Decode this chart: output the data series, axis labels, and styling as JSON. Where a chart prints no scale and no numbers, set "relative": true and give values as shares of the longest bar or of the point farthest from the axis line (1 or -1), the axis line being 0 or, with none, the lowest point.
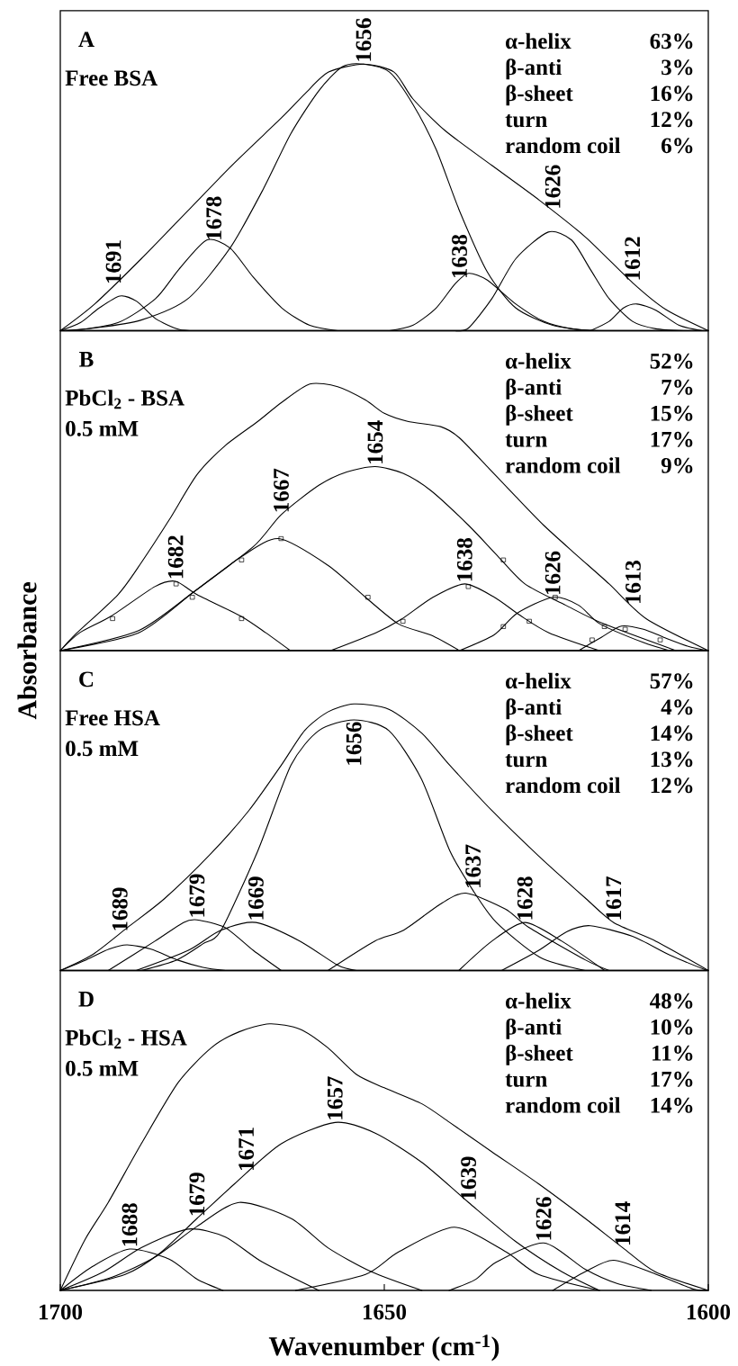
{
  "chart_data": [
    {
      "type": "line",
      "title": "A",
      "subtitle": "Free BSA",
      "relative": true,
      "xlim": [
        1700,
        1600
      ],
      "tick_labels": false,
      "series": [
        {
          "color": "#000000",
          "x": [
            1700,
            1694.7,
            1687.5,
            1680.3,
            1673.1,
            1665.8,
            1662.2,
            1658.6,
            1653.2,
            1648.5,
            1645.6,
            1640.6,
            1633.4,
            1626.1,
            1618.9,
            1611.7,
            1606.6,
            1600
          ],
          "values": [
            0,
            0.1,
            0.27,
            0.45,
            0.63,
            0.8,
            0.89,
            0.97,
            1,
            0.97,
            0.87,
            0.75,
            0.62,
            0.49,
            0.35,
            0.18,
            0.08,
            0
          ]
        },
        {
          "color": "#000000",
          "x": [
            1700,
            1696.9,
            1694,
            1690.8,
            1688.2,
            1685.3,
            1681.7,
            1678.8
          ],
          "values": [
            0,
            0.03,
            0.085,
            0.13,
            0.11,
            0.045,
            0.005,
            0
          ]
        },
        {
          "color": "#000000",
          "x": [
            1698.3,
            1691.1,
            1685.3,
            1681.7,
            1677.4,
            1673.8,
            1670.2,
            1665.8,
            1661.5,
            1657.2
          ],
          "values": [
            0,
            0.03,
            0.12,
            0.23,
            0.34,
            0.31,
            0.2,
            0.085,
            0.02,
            0
          ]
        },
        {
          "color": "#000000",
          "x": [
            1700,
            1694.7,
            1687.5,
            1680.3,
            1673.8,
            1668.7,
            1664.4,
            1660.1,
            1656.5,
            1653.2,
            1649.2,
            1645.6,
            1642,
            1638.4,
            1634.1,
            1629.7,
            1624,
            1618.2
          ],
          "values": [
            0,
            0.01,
            0.04,
            0.12,
            0.31,
            0.53,
            0.74,
            0.9,
            0.99,
            1,
            0.97,
            0.85,
            0.68,
            0.45,
            0.22,
            0.085,
            0.02,
            0
          ]
        },
        {
          "color": "#000000",
          "x": [
            1649.2,
            1645.6,
            1642,
            1639.1,
            1637,
            1634.1,
            1629.7,
            1625.4,
            1621.1,
            1616.8
          ],
          "values": [
            0,
            0.02,
            0.085,
            0.175,
            0.215,
            0.19,
            0.1,
            0.035,
            0.007,
            0
          ]
        },
        {
          "color": "#000000",
          "x": [
            1639.1,
            1637,
            1633.4,
            1629.7,
            1624.7,
            1621.1,
            1618.2,
            1615.3,
            1611.7,
            1608.1,
            1603.8
          ],
          "values": [
            0,
            0.01,
            0.12,
            0.27,
            0.37,
            0.34,
            0.23,
            0.12,
            0.035,
            0.007,
            0
          ]
        },
        {
          "color": "#000000",
          "x": [
            1618.2,
            1615.3,
            1613.1,
            1611,
            1608.1,
            1604.5,
            1600.9
          ],
          "values": [
            0,
            0.035,
            0.085,
            0.1,
            0.077,
            0.02,
            0
          ]
        }
      ],
      "annotations": [
        "α-helix",
        "63%",
        "β-anti",
        "3%",
        "β-sheet",
        "16%",
        "turn",
        "12%",
        "random coil",
        "6%",
        {
          "text": "1691",
          "x": 1691.8,
          "y": 0.168
        },
        {
          "text": "1678",
          "x": 1676.3,
          "y": 0.331
        },
        {
          "text": "1656",
          "x": 1653.2,
          "y": 1
        },
        {
          "text": "1638",
          "x": 1638.4,
          "y": 0.188
        },
        {
          "text": "1626",
          "x": 1624,
          "y": 0.449
        },
        {
          "text": "1612",
          "x": 1611.7,
          "y": 0.18
        }
      ]
    },
    {
      "type": "line",
      "title": "B",
      "subtitle": "PbCl$_{2}$ - BSA",
      "ylabel": "Absorbance",
      "relative": true,
      "xlim": [
        1700,
        1600
      ],
      "tick_labels": false,
      "series": [
        {
          "color": "#000000",
          "x": [
            1700,
            1697.7,
            1691.1,
            1687.5,
            1683.2,
            1678.9,
            1674.5,
            1669.5,
            1665.9,
            1661.5,
            1657.2,
            1652.9,
            1650,
            1646.4,
            1641.3,
            1638.5,
            1634.1,
            1629.8,
            1625.4,
            1620.4,
            1615.3,
            1609.6,
            1600
          ],
          "values": [
            0,
            0.06,
            0.21,
            0.33,
            0.49,
            0.66,
            0.77,
            0.86,
            0.93,
            1,
            0.99,
            0.94,
            0.89,
            0.86,
            0.84,
            0.8,
            0.69,
            0.58,
            0.47,
            0.36,
            0.25,
            0.12,
            0
          ]
        },
        {
          "color": "#000000",
          "x": [
            1700,
            1687.9,
            1679.4,
            1670.2,
            1665.9,
            1660.1,
            1655.8,
            1651.4,
            1647.1,
            1642.8,
            1637,
            1632.7,
            1628.3,
            1622,
            1616.1,
            1605
          ],
          "values": [
            0,
            0.067,
            0.22,
            0.39,
            0.51,
            0.62,
            0.67,
            0.69,
            0.665,
            0.6,
            0.47,
            0.36,
            0.25,
            0.17,
            0.1,
            0
          ]
        },
        {
          "color": "#000000",
          "x": [
            1700,
            1687.9,
            1679.4,
            1672.2,
            1666.3,
            1658.7,
            1652.9,
            1647.8,
            1642.8,
            1638.4
          ],
          "values": [
            0,
            0.075,
            0.22,
            0.35,
            0.42,
            0.32,
            0.2,
            0.1,
            0.058,
            0
          ]
        },
        {
          "color": "#000000",
          "x": [
            1700,
            1697,
            1692.1,
            1685.4,
            1682.2,
            1678.9,
            1672.2,
            1668.3,
            1664.5
          ],
          "values": [
            0,
            0.067,
            0.13,
            0.24,
            0.26,
            0.21,
            0.13,
            0.067,
            0
          ]
        },
        {
          "color": "#000000",
          "x": [
            1658.3,
            1651.3,
            1647.4,
            1642.5,
            1637.6,
            1633,
            1629.1,
            1624.6,
            1616.8
          ],
          "values": [
            0,
            0.067,
            0.117,
            0.2,
            0.25,
            0.2,
            0.133,
            0.067,
            0
          ]
        },
        {
          "color": "#000000",
          "x": [
            1638.4,
            1633,
            1629.5,
            1624,
            1620,
            1616.7,
            1610,
            1606
          ],
          "values": [
            0,
            0.06,
            0.14,
            0.2,
            0.17,
            0.1,
            0.03,
            0
          ]
        },
        {
          "color": "#000000",
          "x": [
            1620,
            1616.5,
            1613.4,
            1610,
            1606.9,
            1603,
            1600
          ],
          "values": [
            0,
            0.05,
            0.092,
            0.08,
            0.05,
            0.015,
            0
          ]
        },
        {
          "type": "scatter",
          "marker": "square",
          "color": "#000000",
          "x": [
            1691.9,
            1682.1,
            1679.6,
            1672,
            1672,
            1665.9,
            1652.5,
            1647.1,
            1637,
            1631.6,
            1631.6,
            1627.6,
            1623.6,
            1617.9,
            1616,
            1612.8,
            1607.4
          ],
          "values": [
            0.12,
            0.25,
            0.2,
            0.34,
            0.12,
            0.42,
            0.2,
            0.11,
            0.24,
            0.34,
            0.09,
            0.11,
            0.2,
            0.04,
            0.09,
            0.08,
            0.04
          ]
        }
      ],
      "annotations": [
        "0.5 mM",
        "α-helix",
        "52%",
        "β-anti",
        "7%",
        "β-sheet",
        "15%",
        "turn",
        "17%",
        "random coil",
        "9%",
        {
          "text": "1682",
          "x": 1682.2,
          "y": 0.26
        },
        {
          "text": "1667",
          "x": 1665.9,
          "y": 0.51
        },
        {
          "text": "1654",
          "x": 1651.4,
          "y": 0.69
        },
        {
          "text": "1638",
          "x": 1637.6,
          "y": 0.25
        },
        {
          "text": "1626",
          "x": 1624,
          "y": 0.2
        },
        {
          "text": "1613",
          "x": 1611.6,
          "y": 0.166
        }
      ]
    },
    {
      "type": "line",
      "title": "C",
      "subtitle": "Free HSA",
      "relative": true,
      "xlim": [
        1700,
        1600
      ],
      "tick_labels": false,
      "series": [
        {
          "color": "#000000",
          "x": [
            1700,
            1695,
            1689.7,
            1683.9,
            1676.7,
            1670.9,
            1665.9,
            1662.3,
            1658.7,
            1654.7,
            1649.3,
            1644.2,
            1639.9,
            1633.4,
            1626.2,
            1618.9,
            1614.6,
            1608.1,
            1600
          ],
          "values": [
            0,
            0.06,
            0.16,
            0.27,
            0.44,
            0.6,
            0.77,
            0.9,
            0.97,
            1,
            0.98,
            0.89,
            0.77,
            0.6,
            0.43,
            0.27,
            0.18,
            0.11,
            0
          ]
        },
        {
          "color": "#000000",
          "x": [
            1687.5,
            1682,
            1678,
            1675.2,
            1669.5,
            1664.4,
            1660.1,
            1654.7,
            1649.3,
            1644.3,
            1639.9,
            1636.3,
            1632.7,
            1626,
            1619
          ],
          "values": [
            0,
            0.04,
            0.1,
            0.15,
            0.45,
            0.77,
            0.9,
            0.94,
            0.9,
            0.72,
            0.45,
            0.3,
            0.18,
            0.05,
            0
          ]
        },
        {
          "color": "#000000",
          "x": [
            1700,
            1696,
            1692.5,
            1689.7,
            1686,
            1682,
            1678,
            1674.5
          ],
          "values": [
            0,
            0.04,
            0.08,
            0.096,
            0.08,
            0.04,
            0.012,
            0
          ]
        },
        {
          "color": "#000000",
          "x": [
            1692.6,
            1685.4,
            1681,
            1678.9,
            1674.5,
            1670.2,
            1665.9
          ],
          "values": [
            0,
            0.11,
            0.18,
            0.19,
            0.16,
            0.075,
            0
          ]
        },
        {
          "color": "#000000",
          "x": [
            1688.3,
            1680.3,
            1675.3,
            1669.8,
            1663,
            1657.2,
            1654.3
          ],
          "values": [
            0,
            0.075,
            0.15,
            0.18,
            0.11,
            0.02,
            0
          ]
        },
        {
          "color": "#000000",
          "x": [
            1658.7,
            1651.5,
            1647.1,
            1641.3,
            1637.4,
            1631.3,
            1627.6,
            1619,
            1615.3
          ],
          "values": [
            0,
            0.11,
            0.15,
            0.25,
            0.29,
            0.23,
            0.16,
            0.04,
            0
          ]
        },
        {
          "color": "#000000",
          "x": [
            1638.5,
            1633.4,
            1628.3,
            1622.6,
            1616
          ],
          "values": [
            0,
            0.11,
            0.18,
            0.11,
            0
          ]
        },
        {
          "color": "#000000",
          "x": [
            1631.9,
            1626.2,
            1621.8,
            1618.2,
            1611.7,
            1605.9,
            1600.2
          ],
          "values": [
            0,
            0.075,
            0.146,
            0.168,
            0.128,
            0.057,
            0
          ]
        }
      ],
      "annotations": [
        "0.5 mM",
        "α-helix",
        "57%",
        "β-anti",
        "4%",
        "β-sheet",
        "14%",
        "turn",
        "13%",
        "random coil",
        "12%",
        {
          "text": "1689",
          "x": 1690.8,
          "y": 0.139
        },
        {
          "text": "1679",
          "x": 1678.9,
          "y": 0.19
        },
        {
          "text": "1669",
          "x": 1669.8,
          "y": 0.18
        },
        {
          "text": "1656",
          "x": 1654.7,
          "y": 0.94
        },
        {
          "text": "1637",
          "x": 1636.3,
          "y": 0.3
        },
        {
          "text": "1628",
          "x": 1628.3,
          "y": 0.18
        },
        {
          "text": "1617",
          "x": 1614.6,
          "y": 0.18
        }
      ]
    },
    {
      "type": "line",
      "title": "D",
      "subtitle": "PbCl$_{2}$ - HSA",
      "xlabel": "Wavenumber (cm$^{-1}$)",
      "relative": true,
      "xlim": [
        1700,
        1600
      ],
      "xticks": [
        1700,
        1650,
        1600
      ],
      "tick_labels": "x",
      "series": [
        {
          "color": "#000000",
          "x": [
            1700,
            1696.2,
            1692.6,
            1687.5,
            1681.8,
            1676.7,
            1672.4,
            1667.7,
            1663,
            1658.7,
            1654.3,
            1650,
            1644.2,
            1639.9,
            1633.4,
            1626.2,
            1619,
            1613.2,
            1608.2,
            1600
          ],
          "values": [
            0,
            0.19,
            0.33,
            0.55,
            0.78,
            0.91,
            0.97,
            1,
            0.98,
            0.91,
            0.81,
            0.76,
            0.7,
            0.63,
            0.52,
            0.4,
            0.27,
            0.16,
            0.07,
            0
          ]
        },
        {
          "color": "#000000",
          "x": [
            1700,
            1690,
            1684.6,
            1678.9,
            1673.1,
            1665.9,
            1657.6,
            1651.4,
            1644.2,
            1637,
            1629.8,
            1622.6,
            1616.8
          ],
          "values": [
            0,
            0.06,
            0.14,
            0.27,
            0.4,
            0.55,
            0.63,
            0.59,
            0.48,
            0.33,
            0.185,
            0.07,
            0
          ]
        },
        {
          "color": "#000000",
          "x": [
            1700,
            1692,
            1685.4,
            1678.9,
            1672.4,
            1664.4,
            1658.7,
            1652,
            1644.2
          ],
          "values": [
            0,
            0.05,
            0.125,
            0.24,
            0.33,
            0.27,
            0.16,
            0.07,
            0
          ]
        },
        {
          "color": "#000000",
          "x": [
            1700,
            1693.3,
            1687.5,
            1680.3,
            1674.5,
            1668.8,
            1660.1
          ],
          "values": [
            0,
            0.07,
            0.16,
            0.23,
            0.2,
            0.106,
            0
          ]
        },
        {
          "color": "#000000",
          "x": [
            1700,
            1695,
            1689.3,
            1683.2,
            1678.9,
            1674.9
          ],
          "values": [
            0,
            0.09,
            0.155,
            0.117,
            0.042,
            0
          ]
        },
        {
          "color": "#000000",
          "x": [
            1663.7,
            1652.9,
            1647.8,
            1639.2,
            1631.2,
            1626.2,
            1616.8
          ],
          "values": [
            0,
            0.06,
            0.144,
            0.237,
            0.144,
            0.06,
            0
          ]
        },
        {
          "color": "#000000",
          "x": [
            1640,
            1636,
            1632.7,
            1625.4,
            1619,
            1614,
            1608.8
          ],
          "values": [
            0,
            0.04,
            0.106,
            0.178,
            0.079,
            0.025,
            0
          ]
        },
        {
          "color": "#000000",
          "x": [
            1624,
            1619,
            1614.6,
            1608.1,
            1602.3,
            1600
          ],
          "values": [
            0,
            0.07,
            0.113,
            0.061,
            0.005,
            0
          ]
        }
      ],
      "annotations": [
        "0.5 mM",
        "α-helix",
        "48%",
        "β-anti",
        "10%",
        "β-sheet",
        "11%",
        "turn",
        "17%",
        "random coil",
        "14%",
        {
          "text": "1688",
          "x": 1689.3,
          "y": 0.155
        },
        {
          "text": "1679",
          "x": 1678.9,
          "y": 0.27
        },
        {
          "text": "1671",
          "x": 1671.3,
          "y": 0.44
        },
        {
          "text": "1657",
          "x": 1657.6,
          "y": 0.63
        },
        {
          "text": "1639",
          "x": 1637,
          "y": 0.33
        },
        {
          "text": "1626",
          "x": 1625.4,
          "y": 0.178
        },
        {
          "text": "1614",
          "x": 1613.2,
          "y": 0.16
        }
      ]
    }
  ]
}
